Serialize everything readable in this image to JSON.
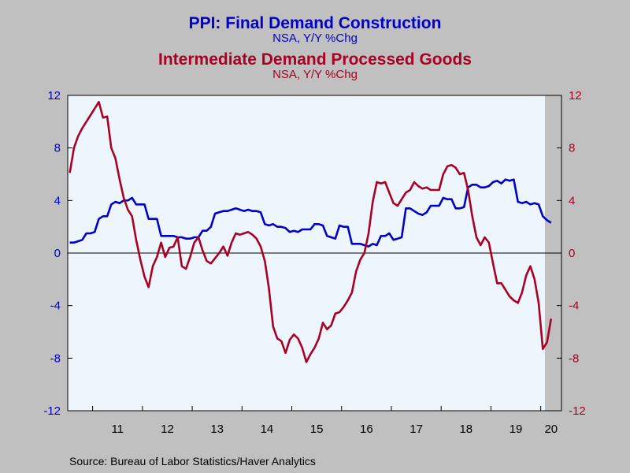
{
  "titles": {
    "line1": "PPI: Final Demand Construction",
    "line1_sub": "NSA, Y/Y %Chg",
    "line2": "Intermediate Demand Processed Goods",
    "line2_sub": "NSA, Y/Y %Chg"
  },
  "source": "Source:  Bureau of Labor Statistics/Haver Analytics",
  "colors": {
    "series1": "#0000c8",
    "series2": "#aa0022",
    "plot_bg": "#eef6fd",
    "recession": "#c0c0c0"
  },
  "chart_data": {
    "type": "line",
    "ylim": [
      -12,
      12
    ],
    "y_ticks_left": [
      "12",
      "8",
      "4",
      "0",
      "-4",
      "-8",
      "-12"
    ],
    "y_ticks_right": [
      "12",
      "8",
      "4",
      "0",
      "-4",
      "-8",
      "-12"
    ],
    "x_start": "2010-07",
    "x_end": "2020-05",
    "x_tick_labels": [
      "11",
      "12",
      "13",
      "14",
      "15",
      "16",
      "17",
      "18",
      "19",
      "20"
    ],
    "shaded_period": {
      "start": "2020-02",
      "end": "2020-05"
    },
    "zero_line": true,
    "grid": false,
    "series": [
      {
        "name": "PPI: Final Demand Construction",
        "axis": "left",
        "color": "#0000c8",
        "values": [
          0.8,
          0.8,
          0.9,
          1.0,
          1.5,
          1.5,
          1.6,
          2.6,
          2.8,
          2.8,
          3.7,
          3.9,
          3.8,
          4.0,
          4.0,
          4.2,
          3.7,
          3.7,
          3.7,
          2.6,
          2.6,
          2.6,
          1.3,
          1.3,
          1.3,
          1.3,
          1.2,
          1.2,
          1.1,
          1.1,
          1.2,
          1.2,
          1.7,
          1.7,
          2.0,
          3.0,
          3.1,
          3.2,
          3.2,
          3.3,
          3.4,
          3.3,
          3.2,
          3.3,
          3.2,
          3.2,
          3.1,
          2.2,
          2.1,
          2.2,
          2.0,
          2.0,
          1.9,
          1.6,
          1.7,
          1.6,
          1.8,
          1.8,
          1.8,
          2.2,
          2.2,
          2.1,
          1.3,
          1.2,
          1.1,
          2.1,
          2.0,
          2.0,
          0.7,
          0.7,
          0.7,
          0.6,
          0.5,
          0.7,
          0.6,
          1.3,
          1.3,
          1.5,
          1.0,
          1.1,
          1.2,
          3.4,
          3.4,
          3.2,
          3.0,
          2.9,
          3.1,
          3.6,
          3.6,
          3.6,
          4.2,
          4.1,
          4.1,
          3.4,
          3.4,
          3.5,
          5.0,
          5.2,
          5.2,
          5.0,
          5.0,
          5.1,
          5.4,
          5.5,
          5.3,
          5.6,
          5.5,
          5.6,
          3.9,
          3.8,
          3.9,
          3.7,
          3.8,
          3.7,
          2.8,
          2.5,
          2.3
        ]
      },
      {
        "name": "Intermediate Demand Processed Goods",
        "axis": "right",
        "color": "#aa0022",
        "values": [
          6.1,
          8.0,
          8.9,
          9.5,
          10.0,
          10.5,
          11.0,
          11.5,
          10.3,
          10.4,
          8.0,
          7.2,
          5.6,
          4.2,
          3.3,
          2.8,
          1.0,
          -0.5,
          -1.8,
          -2.6,
          -1.0,
          -0.3,
          0.8,
          -0.3,
          0.4,
          0.5,
          1.2,
          -1.0,
          -1.2,
          -0.3,
          0.8,
          1.2,
          0.2,
          -0.6,
          -0.8,
          -0.4,
          0.0,
          0.5,
          -0.2,
          0.8,
          1.5,
          1.4,
          1.5,
          1.6,
          1.4,
          1.1,
          0.5,
          -0.6,
          -2.7,
          -5.6,
          -6.5,
          -6.7,
          -7.6,
          -6.6,
          -6.2,
          -6.5,
          -7.2,
          -8.3,
          -7.7,
          -7.2,
          -6.5,
          -5.3,
          -5.8,
          -5.5,
          -4.6,
          -4.5,
          -4.1,
          -3.6,
          -3.0,
          -1.4,
          -0.5,
          0.0,
          1.5,
          3.9,
          5.4,
          5.3,
          5.4,
          4.6,
          3.8,
          3.6,
          4.1,
          4.6,
          4.8,
          5.4,
          5.1,
          4.9,
          5.0,
          4.8,
          4.8,
          4.8,
          6.0,
          6.6,
          6.7,
          6.5,
          6.0,
          6.1,
          4.8,
          2.8,
          1.2,
          0.6,
          1.2,
          0.8,
          -0.8,
          -2.3,
          -2.3,
          -2.8,
          -3.3,
          -3.6,
          -3.8,
          -3.0,
          -1.7,
          -1.0,
          -2.0,
          -3.8,
          -7.3,
          -6.8,
          -5.0
        ]
      }
    ]
  }
}
